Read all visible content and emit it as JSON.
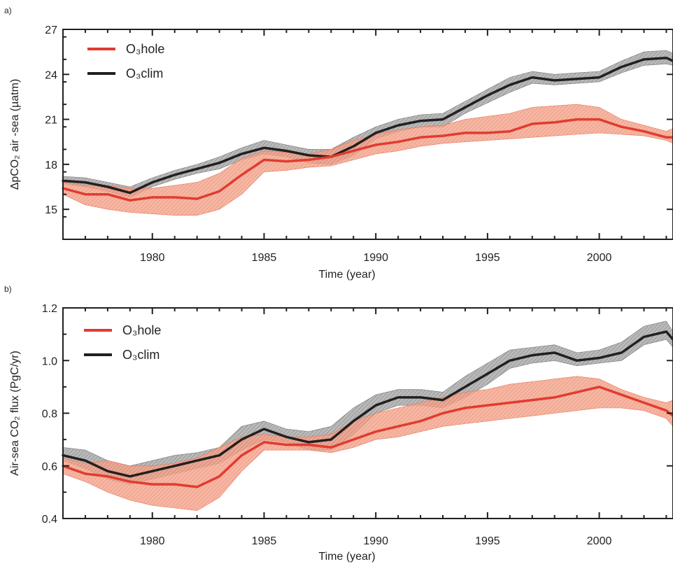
{
  "chart_data": [
    {
      "type": "line",
      "panel_label": "a)",
      "xlabel": "Time (year)",
      "ylabel": "ΔpCO₂ air -sea (µatm)",
      "xlim": [
        1976,
        2003.3
      ],
      "ylim": [
        13,
        27
      ],
      "x_ticks": [
        1980,
        1985,
        1990,
        1995,
        2000
      ],
      "x_tick_labels": [
        "1980",
        "1985",
        "1990",
        "1995",
        "2000"
      ],
      "y_ticks": [
        15,
        18,
        21,
        24,
        27
      ],
      "y_tick_labels": [
        "15",
        "18",
        "21",
        "24",
        "27"
      ],
      "grid": false,
      "legend_position": "top-left",
      "series": [
        {
          "name": "O₃hole",
          "color": "#e03c31",
          "band_color": "#f08a6c",
          "x": [
            1976,
            1977,
            1978,
            1979,
            1980,
            1981,
            1982,
            1983,
            1984,
            1985,
            1986,
            1987,
            1988,
            1989,
            1990,
            1991,
            1992,
            1993,
            1994,
            1995,
            1996,
            1997,
            1998,
            1999,
            2000,
            2001,
            2002,
            2003,
            2003.3
          ],
          "values": [
            16.4,
            16.0,
            16.0,
            15.6,
            15.8,
            15.8,
            15.7,
            16.2,
            17.3,
            18.3,
            18.2,
            18.3,
            18.5,
            18.9,
            19.3,
            19.5,
            19.8,
            19.9,
            20.1,
            20.1,
            20.2,
            20.7,
            20.8,
            21.0,
            21.0,
            20.5,
            20.2,
            19.8,
            19.8
          ],
          "lower": [
            16.0,
            15.3,
            15.0,
            14.8,
            14.7,
            14.6,
            14.6,
            15.0,
            16.0,
            17.5,
            17.6,
            17.8,
            17.9,
            18.3,
            18.7,
            18.9,
            19.2,
            19.4,
            19.5,
            19.6,
            19.7,
            19.8,
            19.9,
            20.0,
            20.1,
            20.0,
            19.9,
            19.6,
            19.4
          ],
          "upper": [
            16.8,
            16.6,
            16.6,
            16.4,
            16.4,
            16.6,
            16.8,
            17.4,
            18.4,
            18.9,
            18.8,
            18.7,
            19.0,
            19.6,
            20.0,
            20.3,
            20.5,
            20.6,
            21.0,
            21.2,
            21.4,
            21.8,
            21.9,
            22.0,
            21.8,
            21.0,
            20.6,
            20.2,
            20.4
          ]
        },
        {
          "name": "O₃clim",
          "color": "#231f20",
          "band_color": "#9b9b9b",
          "x": [
            1976,
            1977,
            1978,
            1979,
            1980,
            1981,
            1982,
            1983,
            1984,
            1985,
            1986,
            1987,
            1988,
            1989,
            1990,
            1991,
            1992,
            1993,
            1994,
            1995,
            1996,
            1997,
            1998,
            1999,
            2000,
            2001,
            2002,
            2003,
            2003.3
          ],
          "values": [
            16.9,
            16.8,
            16.5,
            16.1,
            16.8,
            17.3,
            17.7,
            18.1,
            18.7,
            19.1,
            18.9,
            18.6,
            18.5,
            19.2,
            20.1,
            20.6,
            20.9,
            21.0,
            21.8,
            22.6,
            23.3,
            23.8,
            23.6,
            23.7,
            23.8,
            24.5,
            25.0,
            25.1,
            24.9
          ],
          "lower": [
            16.7,
            16.5,
            16.2,
            15.8,
            16.5,
            17.0,
            17.4,
            17.7,
            18.3,
            18.7,
            18.5,
            18.1,
            18.0,
            18.6,
            19.7,
            20.2,
            20.5,
            20.5,
            21.4,
            22.1,
            22.8,
            23.4,
            23.3,
            23.4,
            23.5,
            24.1,
            24.6,
            24.7,
            24.6
          ],
          "upper": [
            17.2,
            17.1,
            16.8,
            16.5,
            17.1,
            17.6,
            18.0,
            18.5,
            19.1,
            19.6,
            19.3,
            19.0,
            19.0,
            19.8,
            20.5,
            21.0,
            21.3,
            21.4,
            22.2,
            23.0,
            23.8,
            24.2,
            24.0,
            24.1,
            24.2,
            24.9,
            25.5,
            25.6,
            25.4
          ]
        }
      ]
    },
    {
      "type": "line",
      "panel_label": "b)",
      "xlabel": "Time (year)",
      "ylabel": "Air-sea CO₂ flux (PgC/yr)",
      "xlim": [
        1976,
        2003.3
      ],
      "ylim": [
        0.4,
        1.2
      ],
      "x_ticks": [
        1980,
        1985,
        1990,
        1995,
        2000
      ],
      "x_tick_labels": [
        "1980",
        "1985",
        "1990",
        "1995",
        "2000"
      ],
      "y_ticks": [
        0.4,
        0.6,
        0.8,
        1.0,
        1.2
      ],
      "y_tick_labels": [
        "0.4",
        "0.6",
        "0.8",
        "1.0",
        "1.2"
      ],
      "grid": false,
      "legend_position": "top-left",
      "series": [
        {
          "name": "O₃hole",
          "color": "#e03c31",
          "band_color": "#f08a6c",
          "x": [
            1976,
            1977,
            1978,
            1979,
            1980,
            1981,
            1982,
            1983,
            1984,
            1985,
            1986,
            1987,
            1988,
            1989,
            1990,
            1991,
            1992,
            1993,
            1994,
            1995,
            1996,
            1997,
            1998,
            1999,
            2000,
            2001,
            2002,
            2003,
            2003.3
          ],
          "values": [
            0.6,
            0.57,
            0.56,
            0.54,
            0.53,
            0.53,
            0.52,
            0.56,
            0.64,
            0.69,
            0.68,
            0.68,
            0.67,
            0.7,
            0.73,
            0.75,
            0.77,
            0.8,
            0.82,
            0.83,
            0.84,
            0.85,
            0.86,
            0.88,
            0.9,
            0.87,
            0.84,
            0.81,
            0.79
          ],
          "lower": [
            0.57,
            0.54,
            0.5,
            0.47,
            0.45,
            0.44,
            0.43,
            0.48,
            0.58,
            0.66,
            0.66,
            0.66,
            0.65,
            0.67,
            0.7,
            0.71,
            0.73,
            0.75,
            0.76,
            0.77,
            0.78,
            0.79,
            0.8,
            0.81,
            0.82,
            0.82,
            0.81,
            0.78,
            0.75
          ],
          "upper": [
            0.63,
            0.61,
            0.62,
            0.6,
            0.6,
            0.61,
            0.63,
            0.67,
            0.71,
            0.72,
            0.71,
            0.71,
            0.72,
            0.77,
            0.8,
            0.82,
            0.84,
            0.86,
            0.88,
            0.89,
            0.91,
            0.92,
            0.93,
            0.94,
            0.93,
            0.89,
            0.86,
            0.84,
            0.85
          ]
        },
        {
          "name": "O₃clim",
          "color": "#231f20",
          "band_color": "#9b9b9b",
          "x": [
            1976,
            1977,
            1978,
            1979,
            1980,
            1981,
            1982,
            1983,
            1984,
            1985,
            1986,
            1987,
            1988,
            1989,
            1990,
            1991,
            1992,
            1993,
            1994,
            1995,
            1996,
            1997,
            1998,
            1999,
            2000,
            2001,
            2002,
            2003,
            2003.3
          ],
          "values": [
            0.64,
            0.62,
            0.58,
            0.56,
            0.58,
            0.6,
            0.62,
            0.64,
            0.7,
            0.74,
            0.71,
            0.69,
            0.7,
            0.77,
            0.83,
            0.86,
            0.86,
            0.85,
            0.9,
            0.95,
            1.0,
            1.02,
            1.03,
            1.0,
            1.01,
            1.03,
            1.09,
            1.11,
            1.08
          ],
          "lower": [
            0.62,
            0.59,
            0.55,
            0.53,
            0.55,
            0.57,
            0.59,
            0.61,
            0.66,
            0.7,
            0.69,
            0.66,
            0.66,
            0.72,
            0.8,
            0.83,
            0.83,
            0.82,
            0.86,
            0.91,
            0.97,
            0.99,
            1.0,
            0.98,
            0.99,
            1.0,
            1.06,
            1.08,
            1.05
          ],
          "upper": [
            0.67,
            0.66,
            0.62,
            0.6,
            0.62,
            0.64,
            0.65,
            0.67,
            0.75,
            0.77,
            0.74,
            0.73,
            0.75,
            0.82,
            0.87,
            0.89,
            0.89,
            0.88,
            0.94,
            0.99,
            1.04,
            1.05,
            1.06,
            1.03,
            1.04,
            1.07,
            1.13,
            1.15,
            1.11
          ]
        }
      ]
    }
  ]
}
